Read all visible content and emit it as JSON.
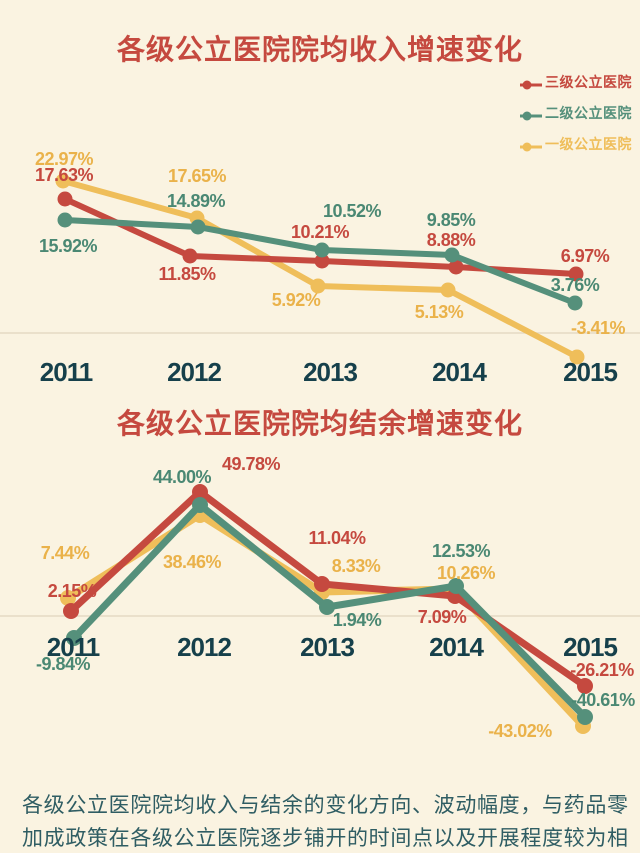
{
  "page": {
    "background": "#FAF3E1"
  },
  "colors": {
    "red": "#C5493F",
    "green": "#55907B",
    "green_label": "#4A8873",
    "yellow": "#EFBE5A",
    "yellow_label": "#EAB24A",
    "title": "#CB4A40",
    "year_label": "#16404B",
    "body_text": "#2F5D63",
    "baseline": "#E4DAC4"
  },
  "chart_data": [
    {
      "type": "line",
      "title": "各级公立医院院均收入增速变化",
      "x": [
        "2011",
        "2012",
        "2013",
        "2014",
        "2015"
      ],
      "unit": "%",
      "grid": false,
      "baseline": 0,
      "legend_position": "top-right",
      "ylim": [
        -5,
        25
      ],
      "series": [
        {
          "name": "三级公立医院",
          "color_key": "red",
          "values": [
            17.63,
            11.85,
            10.21,
            8.88,
            6.97
          ]
        },
        {
          "name": "二级公立医院",
          "color_key": "green",
          "values": [
            15.92,
            14.89,
            10.52,
            9.85,
            3.76
          ]
        },
        {
          "name": "一级公立医院",
          "color_key": "yellow",
          "values": [
            22.97,
            17.65,
            5.92,
            5.13,
            -3.41
          ]
        }
      ]
    },
    {
      "type": "line",
      "title": "各级公立医院院均结余增速变化",
      "x": [
        "2011",
        "2012",
        "2013",
        "2014",
        "2015"
      ],
      "unit": "%",
      "grid": false,
      "baseline": 0,
      "legend_position": "none",
      "ylim": [
        -45,
        52
      ],
      "series": [
        {
          "name": "三级公立医院",
          "color_key": "red",
          "values": [
            2.15,
            49.78,
            11.04,
            7.09,
            -26.21
          ]
        },
        {
          "name": "二级公立医院",
          "color_key": "green",
          "values": [
            -9.84,
            44.0,
            1.94,
            12.53,
            -40.61
          ]
        },
        {
          "name": "一级公立医院",
          "color_key": "yellow",
          "values": [
            7.44,
            38.46,
            8.33,
            10.26,
            -43.02
          ]
        }
      ]
    }
  ],
  "footer": {
    "text": "各级公立医院院均收入与结余的变化方向、波动幅度，与药品零加成政策在各级公立医院逐步铺开的时间点以及开展程度较为相符。"
  }
}
